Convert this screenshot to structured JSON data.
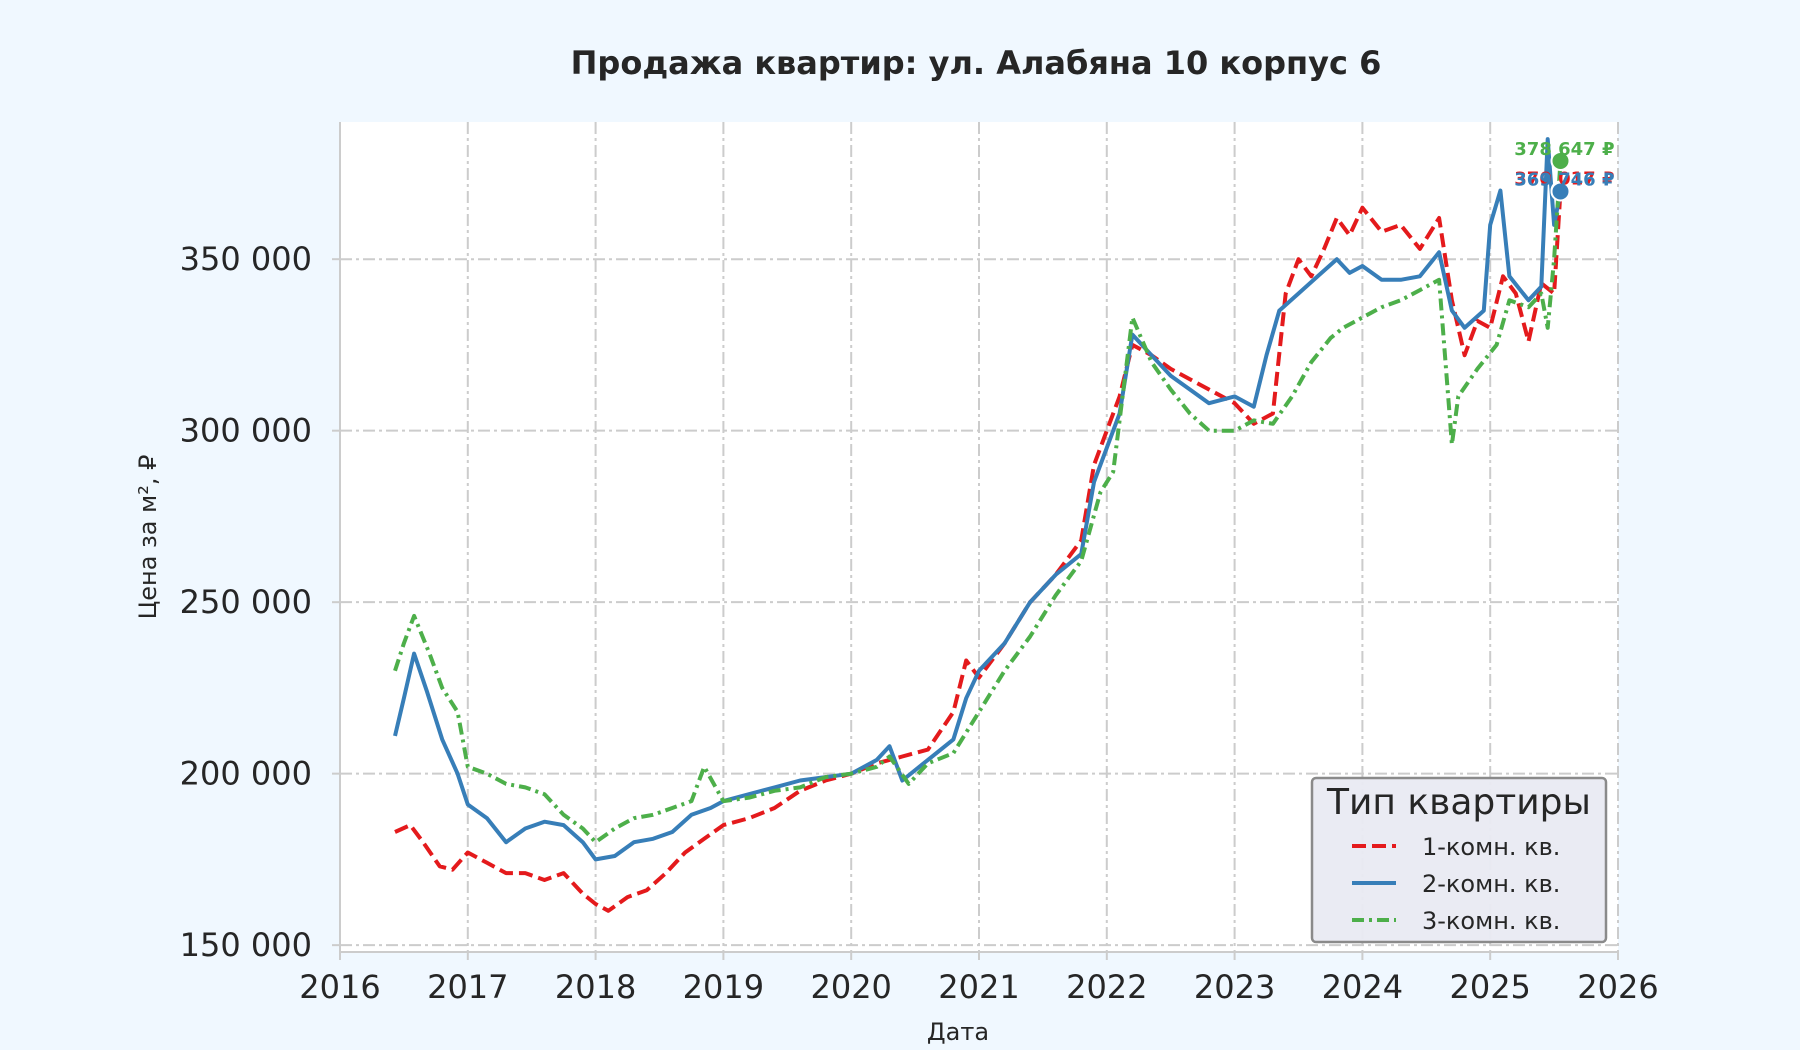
{
  "chart_data": {
    "type": "line",
    "title": "Продажа квартир: ул. Алабяна 10 корпус 6",
    "xlabel": "Дата",
    "ylabel": "Цена за м², ₽",
    "xlim": [
      2016.0,
      2026.0
    ],
    "ylim": [
      148000,
      390000
    ],
    "x_ticks": [
      2016,
      2017,
      2018,
      2019,
      2020,
      2021,
      2022,
      2023,
      2024,
      2025,
      2026
    ],
    "x_tick_labels": [
      "2016",
      "2017",
      "2018",
      "2019",
      "2020",
      "2021",
      "2022",
      "2023",
      "2024",
      "2025",
      "2026"
    ],
    "y_ticks": [
      150000,
      200000,
      250000,
      300000,
      350000
    ],
    "y_tick_labels": [
      "150 000",
      "200 000",
      "250 000",
      "300 000",
      "350 000"
    ],
    "grid": true,
    "legend": {
      "title": "Тип квартиры",
      "placement": "lower-right"
    },
    "series": [
      {
        "name": "1-комн. кв.",
        "color": "#e41a1c",
        "dash": "dashed",
        "x": [
          2016.43,
          2016.55,
          2016.65,
          2016.78,
          2016.88,
          2017.0,
          2017.15,
          2017.3,
          2017.45,
          2017.6,
          2017.75,
          2017.9,
          2018.0,
          2018.1,
          2018.25,
          2018.4,
          2018.55,
          2018.7,
          2018.85,
          2019.0,
          2019.2,
          2019.4,
          2019.6,
          2019.8,
          2020.0,
          2020.2,
          2020.4,
          2020.6,
          2020.8,
          2020.9,
          2021.0,
          2021.2,
          2021.4,
          2021.6,
          2021.8,
          2021.9,
          2022.0,
          2022.1,
          2022.2,
          2022.35,
          2022.5,
          2022.65,
          2022.8,
          2023.0,
          2023.15,
          2023.3,
          2023.4,
          2023.5,
          2023.6,
          2023.7,
          2023.8,
          2023.9,
          2024.0,
          2024.15,
          2024.3,
          2024.45,
          2024.6,
          2024.7,
          2024.8,
          2024.9,
          2025.0,
          2025.1,
          2025.2,
          2025.3,
          2025.4,
          2025.5,
          2025.55
        ],
        "y": [
          183000,
          185000,
          180000,
          173000,
          172000,
          177000,
          174000,
          171000,
          171000,
          169000,
          171000,
          165000,
          162000,
          160000,
          164000,
          166000,
          171000,
          177000,
          181000,
          185000,
          187000,
          190000,
          195000,
          198000,
          200000,
          203000,
          205000,
          207000,
          218000,
          233000,
          228000,
          238000,
          250000,
          258000,
          268000,
          290000,
          300000,
          310000,
          325000,
          322000,
          318000,
          315000,
          312000,
          308000,
          302000,
          305000,
          340000,
          350000,
          345000,
          353000,
          362000,
          357000,
          365000,
          358000,
          360000,
          353000,
          362000,
          338000,
          322000,
          332000,
          330000,
          345000,
          340000,
          326000,
          343000,
          340000,
          370017
        ]
      },
      {
        "name": "2-комн. кв.",
        "color": "#377eb8",
        "dash": "solid",
        "x": [
          2016.43,
          2016.5,
          2016.58,
          2016.68,
          2016.8,
          2016.92,
          2017.0,
          2017.15,
          2017.3,
          2017.45,
          2017.6,
          2017.75,
          2017.9,
          2018.0,
          2018.15,
          2018.3,
          2018.45,
          2018.6,
          2018.75,
          2018.9,
          2019.0,
          2019.2,
          2019.4,
          2019.6,
          2019.8,
          2020.0,
          2020.2,
          2020.3,
          2020.4,
          2020.6,
          2020.8,
          2020.9,
          2021.0,
          2021.2,
          2021.4,
          2021.6,
          2021.8,
          2021.9,
          2022.0,
          2022.1,
          2022.2,
          2022.35,
          2022.5,
          2022.65,
          2022.8,
          2023.0,
          2023.15,
          2023.25,
          2023.35,
          2023.5,
          2023.65,
          2023.8,
          2023.9,
          2024.0,
          2024.15,
          2024.3,
          2024.45,
          2024.6,
          2024.7,
          2024.8,
          2024.95,
          2025.0,
          2025.08,
          2025.15,
          2025.3,
          2025.4,
          2025.45,
          2025.5,
          2025.55
        ],
        "y": [
          211000,
          222000,
          235000,
          224000,
          210000,
          200000,
          191000,
          187000,
          180000,
          184000,
          186000,
          185000,
          180000,
          175000,
          176000,
          180000,
          181000,
          183000,
          188000,
          190000,
          192000,
          194000,
          196000,
          198000,
          199000,
          200000,
          204000,
          208000,
          198000,
          204000,
          210000,
          222000,
          230000,
          238000,
          250000,
          258000,
          264000,
          285000,
          295000,
          305000,
          328000,
          322000,
          316000,
          312000,
          308000,
          310000,
          307000,
          322000,
          335000,
          340000,
          345000,
          350000,
          346000,
          348000,
          344000,
          344000,
          345000,
          352000,
          335000,
          330000,
          335000,
          360000,
          370000,
          345000,
          338000,
          342000,
          385000,
          360000,
          369746
        ]
      },
      {
        "name": "3-комн. кв.",
        "color": "#4daf4a",
        "dash": "dashdot",
        "x": [
          2016.43,
          2016.5,
          2016.58,
          2016.7,
          2016.8,
          2016.92,
          2017.0,
          2017.15,
          2017.3,
          2017.45,
          2017.6,
          2017.75,
          2017.9,
          2018.0,
          2018.15,
          2018.3,
          2018.45,
          2018.6,
          2018.75,
          2018.85,
          2019.0,
          2019.2,
          2019.4,
          2019.6,
          2019.8,
          2020.0,
          2020.2,
          2020.3,
          2020.45,
          2020.6,
          2020.8,
          2020.9,
          2021.0,
          2021.2,
          2021.4,
          2021.6,
          2021.8,
          2021.95,
          2022.05,
          2022.2,
          2022.35,
          2022.5,
          2022.65,
          2022.8,
          2023.0,
          2023.15,
          2023.3,
          2023.45,
          2023.6,
          2023.75,
          2023.85,
          2024.0,
          2024.15,
          2024.3,
          2024.45,
          2024.6,
          2024.65,
          2024.7,
          2024.75,
          2024.9,
          2025.05,
          2025.15,
          2025.3,
          2025.4,
          2025.45,
          2025.5,
          2025.55
        ],
        "y": [
          230000,
          238000,
          246000,
          235000,
          225000,
          218000,
          202000,
          200000,
          197000,
          196000,
          194000,
          188000,
          184000,
          180000,
          184000,
          187000,
          188000,
          190000,
          192000,
          202000,
          192000,
          193000,
          195000,
          196000,
          199000,
          200000,
          202000,
          205000,
          197000,
          203000,
          206000,
          212000,
          218000,
          230000,
          240000,
          252000,
          262000,
          282000,
          288000,
          333000,
          320000,
          312000,
          305000,
          300000,
          300000,
          303000,
          302000,
          310000,
          320000,
          327000,
          330000,
          333000,
          336000,
          338000,
          341000,
          344000,
          320000,
          296000,
          310000,
          318000,
          325000,
          338000,
          336000,
          340000,
          330000,
          350000,
          378647
        ]
      }
    ],
    "end_labels": [
      "370 017 ₽",
      "369 746 ₽",
      "378 647 ₽"
    ]
  }
}
